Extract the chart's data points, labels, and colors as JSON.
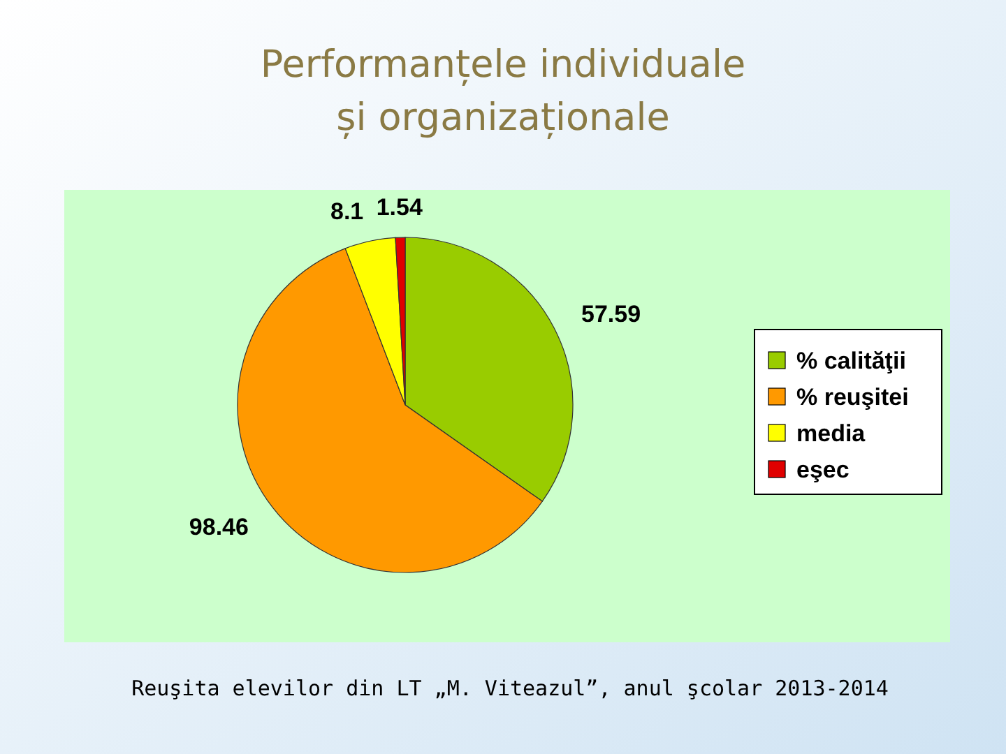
{
  "chart_data": {
    "type": "pie",
    "title": "Performanțele individuale și organizaționale",
    "categories": [
      "% calităţii",
      "% reuşitei",
      "media",
      "eşec"
    ],
    "values": [
      57.59,
      98.46,
      8.1,
      1.54
    ],
    "colors": [
      "#99cc00",
      "#ff9900",
      "#ffff00",
      "#e00000"
    ],
    "data_labels": true,
    "legend": "right",
    "annotations": [
      "Reuşita elevilor din LT „M. Viteazul”, anul şcolar 2013-2014"
    ]
  }
}
